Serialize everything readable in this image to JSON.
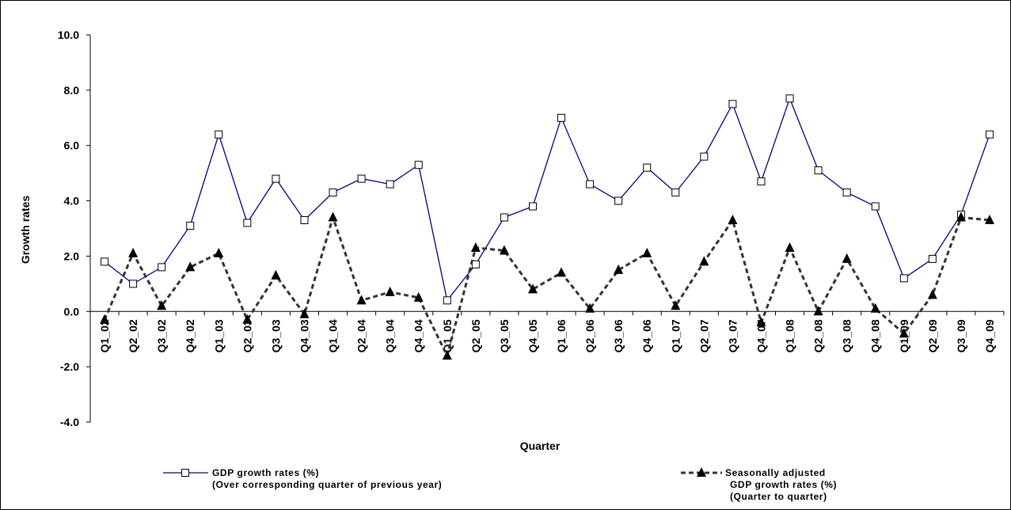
{
  "chart_data": {
    "type": "line",
    "xlabel": "Quarter",
    "ylabel": "Growth rates",
    "ylim": [
      -4.0,
      10.0
    ],
    "yticks": [
      "10.0",
      "8.0",
      "6.0",
      "4.0",
      "2.0",
      "0.0",
      "-2.0",
      "-4.0"
    ],
    "ytick_values": [
      10,
      8,
      6,
      4,
      2,
      0,
      -2,
      -4
    ],
    "categories": [
      "Q1_02",
      "Q2_02",
      "Q3_02",
      "Q4_02",
      "Q1_03",
      "Q2_03",
      "Q3_03",
      "Q4_03",
      "Q1_04",
      "Q2_04",
      "Q3_04",
      "Q4_04",
      "Q1_05",
      "Q2_05",
      "Q3_05",
      "Q4_05",
      "Q1_06",
      "Q2_06",
      "Q3_06",
      "Q4_06",
      "Q1_07",
      "Q2_07",
      "Q3_07",
      "Q4_07",
      "Q1_08",
      "Q2_08",
      "Q3_08",
      "Q4_08",
      "Q1_09",
      "Q2_09",
      "Q3_09",
      "Q4_09"
    ],
    "grid": false,
    "legend_position": "bottom",
    "series": [
      {
        "name_lines": [
          "GDP growth rates (%)",
          "(Over corresponding quarter of previous year)"
        ],
        "color": "#000080",
        "line_style": "solid",
        "marker": "open-square",
        "values": [
          1.8,
          1.0,
          1.6,
          3.1,
          6.4,
          3.2,
          4.8,
          3.3,
          4.3,
          4.8,
          4.6,
          5.3,
          0.4,
          1.7,
          3.4,
          3.8,
          7.0,
          4.6,
          4.0,
          5.2,
          4.3,
          5.6,
          7.5,
          4.7,
          7.7,
          5.1,
          4.3,
          3.8,
          1.2,
          1.9,
          3.5,
          6.4
        ]
      },
      {
        "name_lines": [
          "Seasonally adjusted",
          "GDP growth rates (%)",
          "(Quarter to quarter)"
        ],
        "color": "#333333",
        "line_style": "dashed",
        "marker": "filled-triangle",
        "values": [
          -0.3,
          2.1,
          0.2,
          1.6,
          2.1,
          -0.3,
          1.3,
          -0.1,
          3.4,
          0.4,
          0.7,
          0.5,
          -1.6,
          2.3,
          2.2,
          0.8,
          1.4,
          0.1,
          1.5,
          2.1,
          0.2,
          1.8,
          3.3,
          -0.4,
          2.3,
          0.0,
          1.9,
          0.1,
          -0.8,
          0.6,
          3.4,
          3.3
        ]
      }
    ]
  }
}
